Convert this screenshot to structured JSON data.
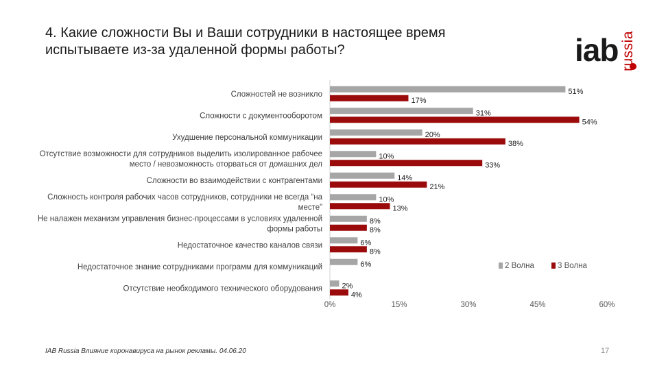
{
  "title": "4. Какие сложности Вы и Ваши сотрудники в настоящее время испытываете из-за удаленной формы работы?",
  "logo": {
    "brand": "iab",
    "sub": "russia"
  },
  "colors": {
    "wave2": "#a6a6a6",
    "wave3": "#9b0b0b"
  },
  "chart_data": {
    "type": "bar",
    "orientation": "horizontal",
    "categories": [
      "Сложностей не возникло",
      "Сложности с документооборотом",
      "Ухудшение персональной коммуникации",
      "Отсутствие возможности для сотрудников выделить изолированное рабочее место / невозможность оторваться от домашних дел",
      "Сложности во взаимодействии с контрагентами",
      "Сложность контроля рабочих часов сотрудников, сотрудники не всегда “на месте”",
      "Не налажен механизм управления бизнес-процессами в условиях удаленной формы работы",
      "Недостаточное качество каналов связи",
      "Недостаточное знание сотрудниками программ для коммуникаций",
      "Отсутствие необходимого технического оборудования"
    ],
    "category_lines": [
      [
        "Сложностей не возникло"
      ],
      [
        "Сложности с документооборотом"
      ],
      [
        "Ухудшение персональной коммуникации"
      ],
      [
        "Отсутствие возможности для сотрудников выделить изолированное рабочее",
        "место / невозможность оторваться от домашних дел"
      ],
      [
        "Сложности во взаимодействии с контрагентами"
      ],
      [
        "Сложность контроля рабочих часов сотрудников, сотрудники не всегда “на",
        "месте”"
      ],
      [
        "Не налажен механизм управления бизнес-процессами в условиях удаленной",
        "формы работы"
      ],
      [
        "Недостаточное качество каналов связи"
      ],
      [
        "Недостаточное знание сотрудниками программ для коммуникаций"
      ],
      [
        "Отсутствие необходимого технического оборудования"
      ]
    ],
    "series": [
      {
        "name": "2 Волна",
        "values": [
          51,
          31,
          20,
          10,
          14,
          10,
          8,
          6,
          6,
          2
        ]
      },
      {
        "name": "3 Волна",
        "values": [
          17,
          54,
          38,
          33,
          21,
          13,
          8,
          8,
          null,
          4
        ]
      }
    ],
    "value_labels": [
      [
        "51%",
        "31%",
        "20%",
        "10%",
        "14%",
        "10%",
        "8%",
        "6%",
        "6%",
        "2%"
      ],
      [
        "17%",
        "54%",
        "38%",
        "33%",
        "21%",
        "13%",
        "8%",
        "8%",
        null,
        "4%"
      ]
    ],
    "xlim": [
      0,
      60
    ],
    "xticks": [
      "0%",
      "15%",
      "30%",
      "45%",
      "60%"
    ],
    "xtick_values": [
      0,
      15,
      30,
      45,
      60
    ],
    "legend_position": "bottom-right",
    "grid": false
  },
  "footer": "IAB Russia Влияние коронавируса на рынок рекламы. 04.06.20",
  "page_number": "17"
}
